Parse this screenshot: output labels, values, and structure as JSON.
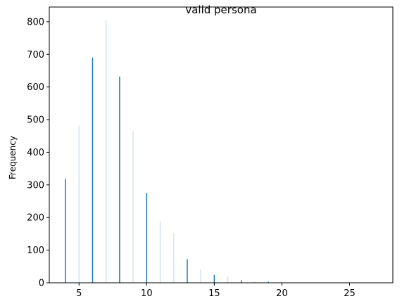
{
  "chart_data": {
    "type": "bar",
    "title": "valid persona",
    "xlabel": "",
    "ylabel": "Frequency",
    "xlim": [
      2.8,
      28.2
    ],
    "ylim": [
      0,
      845
    ],
    "xticks": [
      5,
      10,
      15,
      20,
      25
    ],
    "yticks": [
      0,
      100,
      200,
      300,
      400,
      500,
      600,
      700,
      800
    ],
    "grid": false,
    "legend": "none",
    "bar_color": "#1f77b4",
    "bars": [
      {
        "x": 4,
        "value": 318,
        "opacity": 1.0
      },
      {
        "x": 5,
        "value": 482,
        "opacity": 0.2
      },
      {
        "x": 6,
        "value": 690,
        "opacity": 1.0
      },
      {
        "x": 7,
        "value": 806,
        "opacity": 0.2
      },
      {
        "x": 8,
        "value": 632,
        "opacity": 1.0
      },
      {
        "x": 9,
        "value": 465,
        "opacity": 0.2
      },
      {
        "x": 10,
        "value": 276,
        "opacity": 1.0
      },
      {
        "x": 11,
        "value": 188,
        "opacity": 0.2
      },
      {
        "x": 12,
        "value": 152,
        "opacity": 0.2
      },
      {
        "x": 13,
        "value": 72,
        "opacity": 1.0
      },
      {
        "x": 14,
        "value": 42,
        "opacity": 0.2
      },
      {
        "x": 15,
        "value": 24,
        "opacity": 1.0
      },
      {
        "x": 16,
        "value": 19,
        "opacity": 0.2
      },
      {
        "x": 17,
        "value": 8,
        "opacity": 1.0
      },
      {
        "x": 18,
        "value": 4,
        "opacity": 0.2
      },
      {
        "x": 19,
        "value": 3,
        "opacity": 1.0
      },
      {
        "x": 20,
        "value": 2,
        "opacity": 0.2
      },
      {
        "x": 21,
        "value": 1,
        "opacity": 0.2
      },
      {
        "x": 22,
        "value": 1,
        "opacity": 0.2
      },
      {
        "x": 24,
        "value": 1,
        "opacity": 0.2
      },
      {
        "x": 27,
        "value": 1,
        "opacity": 0.2
      }
    ]
  }
}
